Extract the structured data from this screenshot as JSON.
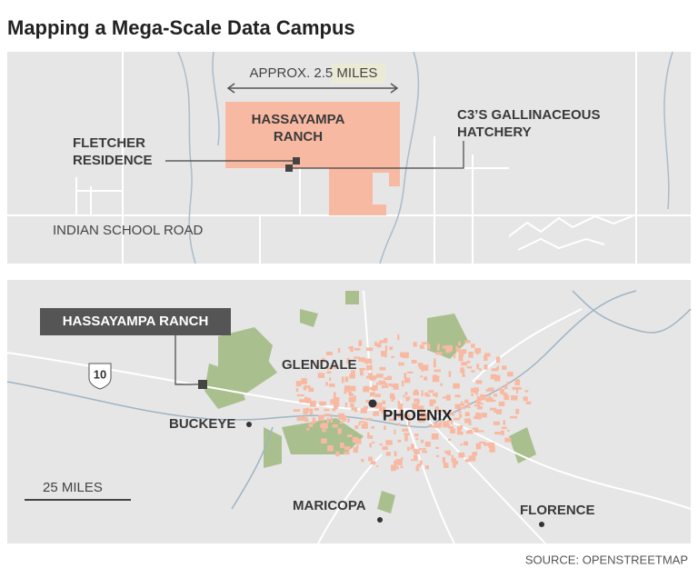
{
  "header": {
    "title": "Mapping a Mega-Scale Data Campus"
  },
  "top_map": {
    "scale_label": "APPROX. 2.5 MILES",
    "site_label": [
      "HASSAYAMPA",
      "RANCH"
    ],
    "residence_label": [
      "FLETCHER",
      "RESIDENCE"
    ],
    "hatchery_label": [
      "C3’S GALLINACEOUS",
      "HATCHERY"
    ],
    "road_label": "INDIAN SCHOOL ROAD"
  },
  "bottom_map": {
    "site_label": "HASSAYAMPA RANCH",
    "highway_label": "10",
    "cities": [
      "GLENDALE",
      "PHOENIX",
      "BUCKEYE",
      "MARICOPA",
      "FLORENCE"
    ],
    "scale_label": "25 MILES"
  },
  "footer": {
    "source": "SOURCE: OPENSTREETMAP"
  }
}
